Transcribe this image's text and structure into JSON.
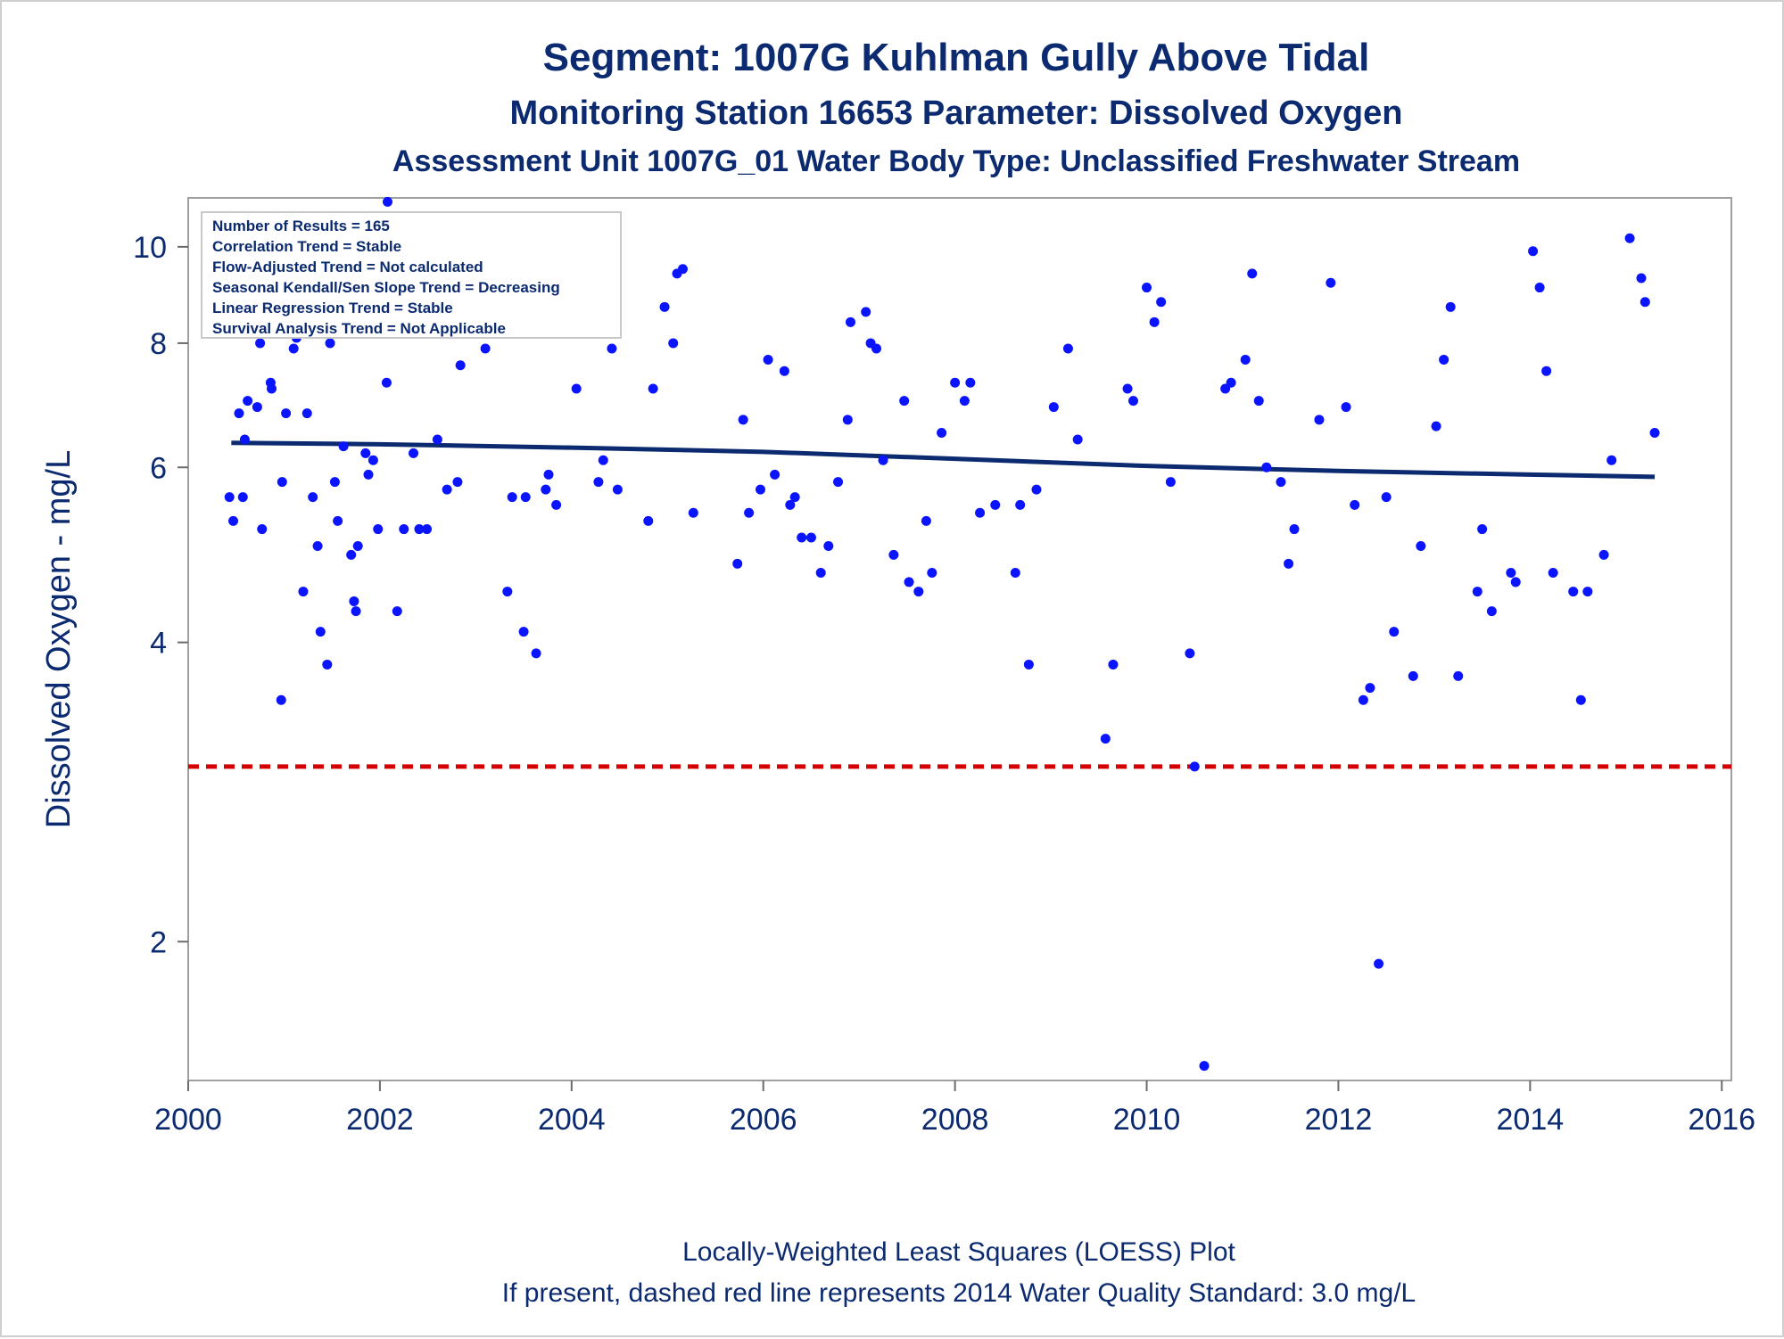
{
  "chart_data": {
    "type": "scatter",
    "title": "Segment: 1007G  Kuhlman Gully Above Tidal",
    "subtitle": "Monitoring Station 16653 Parameter: Dissolved Oxygen",
    "subtitle2": "Assessment Unit 1007G_01   Water Body Type: Unclassified Freshwater Stream",
    "xlabel": "",
    "ylabel": "Dissolved Oxygen - mg/L",
    "y_scale": "log",
    "xlim": [
      2000,
      2016.1
    ],
    "ylim": [
      1.45,
      11.2
    ],
    "x_ticks": [
      "2000",
      "2002",
      "2004",
      "2006",
      "2008",
      "2010",
      "2012",
      "2014",
      "2016"
    ],
    "y_ticks": [
      "2",
      "4",
      "6",
      "8",
      "10"
    ],
    "grid": false,
    "footnote1": "Locally-Weighted Least Squares (LOESS) Plot",
    "footnote2": "If present, dashed red line represents 2014 Water Quality Standard: 3.0 mg/L",
    "stats_box": [
      "Number of Results = 165",
      "Correlation Trend = Stable",
      "Flow-Adjusted Trend = Not calculated",
      "Seasonal Kendall/Sen Slope Trend = Decreasing",
      "Linear Regression Trend = Stable",
      "Survival Analysis Trend = Not Applicable"
    ],
    "standard_line": {
      "value": 3.0,
      "color": "#d40000",
      "style": "dashed"
    },
    "loess_line": {
      "color": "#0b2a6f",
      "x": [
        2000.45,
        2002,
        2004,
        2006,
        2008,
        2010,
        2012,
        2014,
        2015.3
      ],
      "y": [
        6.35,
        6.33,
        6.28,
        6.22,
        6.12,
        6.02,
        5.95,
        5.9,
        5.87
      ]
    },
    "point_color": "#0a14ff",
    "points": [
      [
        2000.43,
        5.6
      ],
      [
        2000.47,
        5.3
      ],
      [
        2000.53,
        6.8
      ],
      [
        2000.57,
        5.6
      ],
      [
        2000.59,
        6.4
      ],
      [
        2000.62,
        7.0
      ],
      [
        2000.72,
        6.9
      ],
      [
        2000.75,
        8.0
      ],
      [
        2000.77,
        5.2
      ],
      [
        2000.8,
        8.6
      ],
      [
        2000.86,
        7.3
      ],
      [
        2000.87,
        7.2
      ],
      [
        2000.97,
        3.5
      ],
      [
        2000.98,
        5.8
      ],
      [
        2001.02,
        6.8
      ],
      [
        2001.06,
        8.2
      ],
      [
        2001.1,
        7.9
      ],
      [
        2001.13,
        8.1
      ],
      [
        2001.2,
        4.5
      ],
      [
        2001.24,
        6.8
      ],
      [
        2001.28,
        10.0
      ],
      [
        2001.3,
        5.6
      ],
      [
        2001.35,
        5.0
      ],
      [
        2001.38,
        4.1
      ],
      [
        2001.45,
        3.8
      ],
      [
        2001.48,
        8.0
      ],
      [
        2001.53,
        5.8
      ],
      [
        2001.56,
        5.3
      ],
      [
        2001.62,
        6.3
      ],
      [
        2001.7,
        4.9
      ],
      [
        2001.73,
        4.4
      ],
      [
        2001.75,
        4.3
      ],
      [
        2001.77,
        5.0
      ],
      [
        2001.85,
        6.2
      ],
      [
        2001.88,
        5.9
      ],
      [
        2001.93,
        6.1
      ],
      [
        2001.98,
        5.2
      ],
      [
        2002.07,
        7.3
      ],
      [
        2002.08,
        11.1
      ],
      [
        2002.18,
        4.3
      ],
      [
        2002.25,
        5.2
      ],
      [
        2002.35,
        6.2
      ],
      [
        2002.41,
        5.2
      ],
      [
        2002.49,
        5.2
      ],
      [
        2002.6,
        6.4
      ],
      [
        2002.7,
        5.7
      ],
      [
        2002.81,
        5.8
      ],
      [
        2002.84,
        7.6
      ],
      [
        2002.92,
        8.8
      ],
      [
        2003.02,
        9.0
      ],
      [
        2003.1,
        7.9
      ],
      [
        2003.33,
        4.5
      ],
      [
        2003.38,
        5.6
      ],
      [
        2003.5,
        4.1
      ],
      [
        2003.52,
        5.6
      ],
      [
        2003.63,
        3.9
      ],
      [
        2003.73,
        5.7
      ],
      [
        2003.76,
        5.9
      ],
      [
        2003.84,
        5.5
      ],
      [
        2004.0,
        8.6
      ],
      [
        2004.05,
        7.2
      ],
      [
        2004.12,
        10.0
      ],
      [
        2004.28,
        5.8
      ],
      [
        2004.33,
        6.1
      ],
      [
        2004.42,
        7.9
      ],
      [
        2004.48,
        5.7
      ],
      [
        2004.8,
        5.3
      ],
      [
        2004.85,
        7.2
      ],
      [
        2004.97,
        8.7
      ],
      [
        2005.06,
        8.0
      ],
      [
        2005.1,
        9.4
      ],
      [
        2005.16,
        9.5
      ],
      [
        2005.27,
        5.4
      ],
      [
        2005.73,
        4.8
      ],
      [
        2005.79,
        6.7
      ],
      [
        2005.85,
        5.4
      ],
      [
        2005.97,
        5.7
      ],
      [
        2006.05,
        7.7
      ],
      [
        2006.12,
        5.9
      ],
      [
        2006.22,
        7.5
      ],
      [
        2006.28,
        5.5
      ],
      [
        2006.33,
        5.6
      ],
      [
        2006.4,
        5.1
      ],
      [
        2006.5,
        5.1
      ],
      [
        2006.6,
        4.7
      ],
      [
        2006.68,
        5.0
      ],
      [
        2006.78,
        5.8
      ],
      [
        2006.88,
        6.7
      ],
      [
        2006.91,
        8.4
      ],
      [
        2007.07,
        8.6
      ],
      [
        2007.12,
        8.0
      ],
      [
        2007.18,
        7.9
      ],
      [
        2007.25,
        6.1
      ],
      [
        2007.36,
        4.9
      ],
      [
        2007.47,
        7.0
      ],
      [
        2007.52,
        4.6
      ],
      [
        2007.62,
        4.5
      ],
      [
        2007.7,
        5.3
      ],
      [
        2007.76,
        4.7
      ],
      [
        2007.86,
        6.5
      ],
      [
        2008.0,
        7.3
      ],
      [
        2008.1,
        7.0
      ],
      [
        2008.16,
        7.3
      ],
      [
        2008.26,
        5.4
      ],
      [
        2008.42,
        5.5
      ],
      [
        2008.63,
        4.7
      ],
      [
        2008.68,
        5.5
      ],
      [
        2008.77,
        3.8
      ],
      [
        2008.85,
        5.7
      ],
      [
        2009.03,
        6.9
      ],
      [
        2009.18,
        7.9
      ],
      [
        2009.28,
        6.4
      ],
      [
        2009.57,
        3.2
      ],
      [
        2009.65,
        3.8
      ],
      [
        2009.8,
        7.2
      ],
      [
        2009.86,
        7.0
      ],
      [
        2010.0,
        9.1
      ],
      [
        2010.08,
        8.4
      ],
      [
        2010.15,
        8.8
      ],
      [
        2010.25,
        5.8
      ],
      [
        2010.45,
        3.9
      ],
      [
        2010.5,
        3.0
      ],
      [
        2010.6,
        1.5
      ],
      [
        2010.82,
        7.2
      ],
      [
        2010.88,
        7.3
      ],
      [
        2011.03,
        7.7
      ],
      [
        2011.1,
        9.4
      ],
      [
        2011.17,
        7.0
      ],
      [
        2011.25,
        6.0
      ],
      [
        2011.4,
        5.8
      ],
      [
        2011.48,
        4.8
      ],
      [
        2011.54,
        5.2
      ],
      [
        2011.8,
        6.7
      ],
      [
        2011.92,
        9.2
      ],
      [
        2012.08,
        6.9
      ],
      [
        2012.17,
        5.5
      ],
      [
        2012.26,
        3.5
      ],
      [
        2012.33,
        3.6
      ],
      [
        2012.42,
        1.9
      ],
      [
        2012.5,
        5.6
      ],
      [
        2012.58,
        4.1
      ],
      [
        2012.78,
        3.7
      ],
      [
        2012.86,
        5.0
      ],
      [
        2013.02,
        6.6
      ],
      [
        2013.1,
        7.7
      ],
      [
        2013.17,
        8.7
      ],
      [
        2013.25,
        3.7
      ],
      [
        2013.45,
        4.5
      ],
      [
        2013.5,
        5.2
      ],
      [
        2013.6,
        4.3
      ],
      [
        2013.8,
        4.7
      ],
      [
        2013.85,
        4.6
      ],
      [
        2014.03,
        9.9
      ],
      [
        2014.1,
        9.1
      ],
      [
        2014.17,
        7.5
      ],
      [
        2014.24,
        4.7
      ],
      [
        2014.45,
        4.5
      ],
      [
        2014.53,
        3.5
      ],
      [
        2014.6,
        4.5
      ],
      [
        2014.77,
        4.9
      ],
      [
        2014.85,
        6.1
      ],
      [
        2015.04,
        10.2
      ],
      [
        2015.16,
        9.3
      ],
      [
        2015.2,
        8.8
      ],
      [
        2015.3,
        6.5
      ]
    ]
  }
}
